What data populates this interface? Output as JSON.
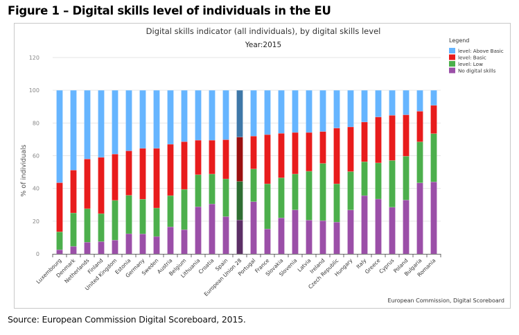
{
  "figure_title": "Figure 1 – Digital skills level of individuals in the EU",
  "source_note": "Source: European Commission Digital Scoreboard, 2015.",
  "colors": {
    "above_basic": "#66b5ff",
    "basic": "#e81c1c",
    "low": "#4caf4c",
    "none": "#9b4fa8",
    "above_basic_highlight": "#3f78a8",
    "basic_highlight": "#9a1010",
    "low_highlight": "#2f6e33",
    "none_highlight": "#5c2f66",
    "gridline": "#e6e6e6",
    "axis_text": "#888888"
  },
  "chart_data": {
    "type": "bar",
    "stacked": true,
    "title": "Digital skills indicator (all individuals), by digital skills level",
    "subtitle": "Year:2015",
    "xlabel": "",
    "ylabel": "% of individuals",
    "ylim": [
      0,
      120
    ],
    "yticks": [
      0,
      20,
      40,
      60,
      80,
      100,
      120
    ],
    "grid": true,
    "legend_title": "Legend",
    "legend_position": "top-right",
    "credit": "European Commission, Digital Scoreboard",
    "highlight_category": "European Union 28",
    "categories": [
      "Luxembourg",
      "Denmark",
      "Netherlands",
      "Finland",
      "United Kingdom",
      "Estonia",
      "Germany",
      "Sweden",
      "Austria",
      "Belgium",
      "Lithuania",
      "Croatia",
      "Spain",
      "European Union 28",
      "Portugal",
      "France",
      "Slovakia",
      "Slovenia",
      "Latvia",
      "Ireland",
      "Czech Republic",
      "Hungary",
      "Italy",
      "Greece",
      "Cyprus",
      "Poland",
      "Bulgaria",
      "Romania"
    ],
    "series": [
      {
        "key": "none",
        "name": "No digital skills",
        "values": [
          2.5,
          4.6,
          7.1,
          7.5,
          8.4,
          12.3,
          12.2,
          10.6,
          16.5,
          14.8,
          28.8,
          30.5,
          22.8,
          20.7,
          31.9,
          15.2,
          22.0,
          26.9,
          20.6,
          20.3,
          19.4,
          26.8,
          35.6,
          33.5,
          28.5,
          32.9,
          43.4,
          44.0
        ]
      },
      {
        "key": "low",
        "name": "level: Low",
        "values": [
          11.0,
          20.4,
          20.5,
          17.1,
          24.3,
          23.5,
          21.2,
          17.4,
          19.1,
          24.6,
          19.6,
          18.3,
          23.0,
          23.6,
          20.0,
          27.6,
          24.5,
          21.9,
          29.9,
          35.0,
          23.4,
          23.5,
          20.7,
          22.1,
          28.6,
          26.8,
          25.1,
          29.5
        ]
      },
      {
        "key": "basic",
        "name": "level: Basic",
        "values": [
          30.0,
          26.2,
          30.4,
          34.4,
          28.3,
          27.2,
          31.1,
          36.5,
          31.4,
          29.2,
          21.1,
          20.7,
          24.0,
          27.1,
          20.1,
          30.1,
          27.2,
          25.4,
          23.7,
          19.5,
          34.1,
          27.3,
          24.3,
          28.1,
          27.6,
          25.3,
          18.7,
          17.3
        ]
      },
      {
        "key": "above_basic",
        "name": "level: Above Basic",
        "values": [
          56.5,
          48.8,
          42.0,
          41.0,
          39.0,
          37.0,
          35.5,
          35.5,
          33.0,
          31.4,
          30.5,
          30.5,
          30.2,
          28.6,
          28.0,
          27.1,
          26.3,
          25.8,
          25.8,
          25.2,
          23.1,
          22.4,
          19.4,
          16.3,
          15.3,
          15.0,
          12.8,
          9.2
        ]
      }
    ],
    "legend_order": [
      "above_basic",
      "basic",
      "low",
      "none"
    ]
  }
}
